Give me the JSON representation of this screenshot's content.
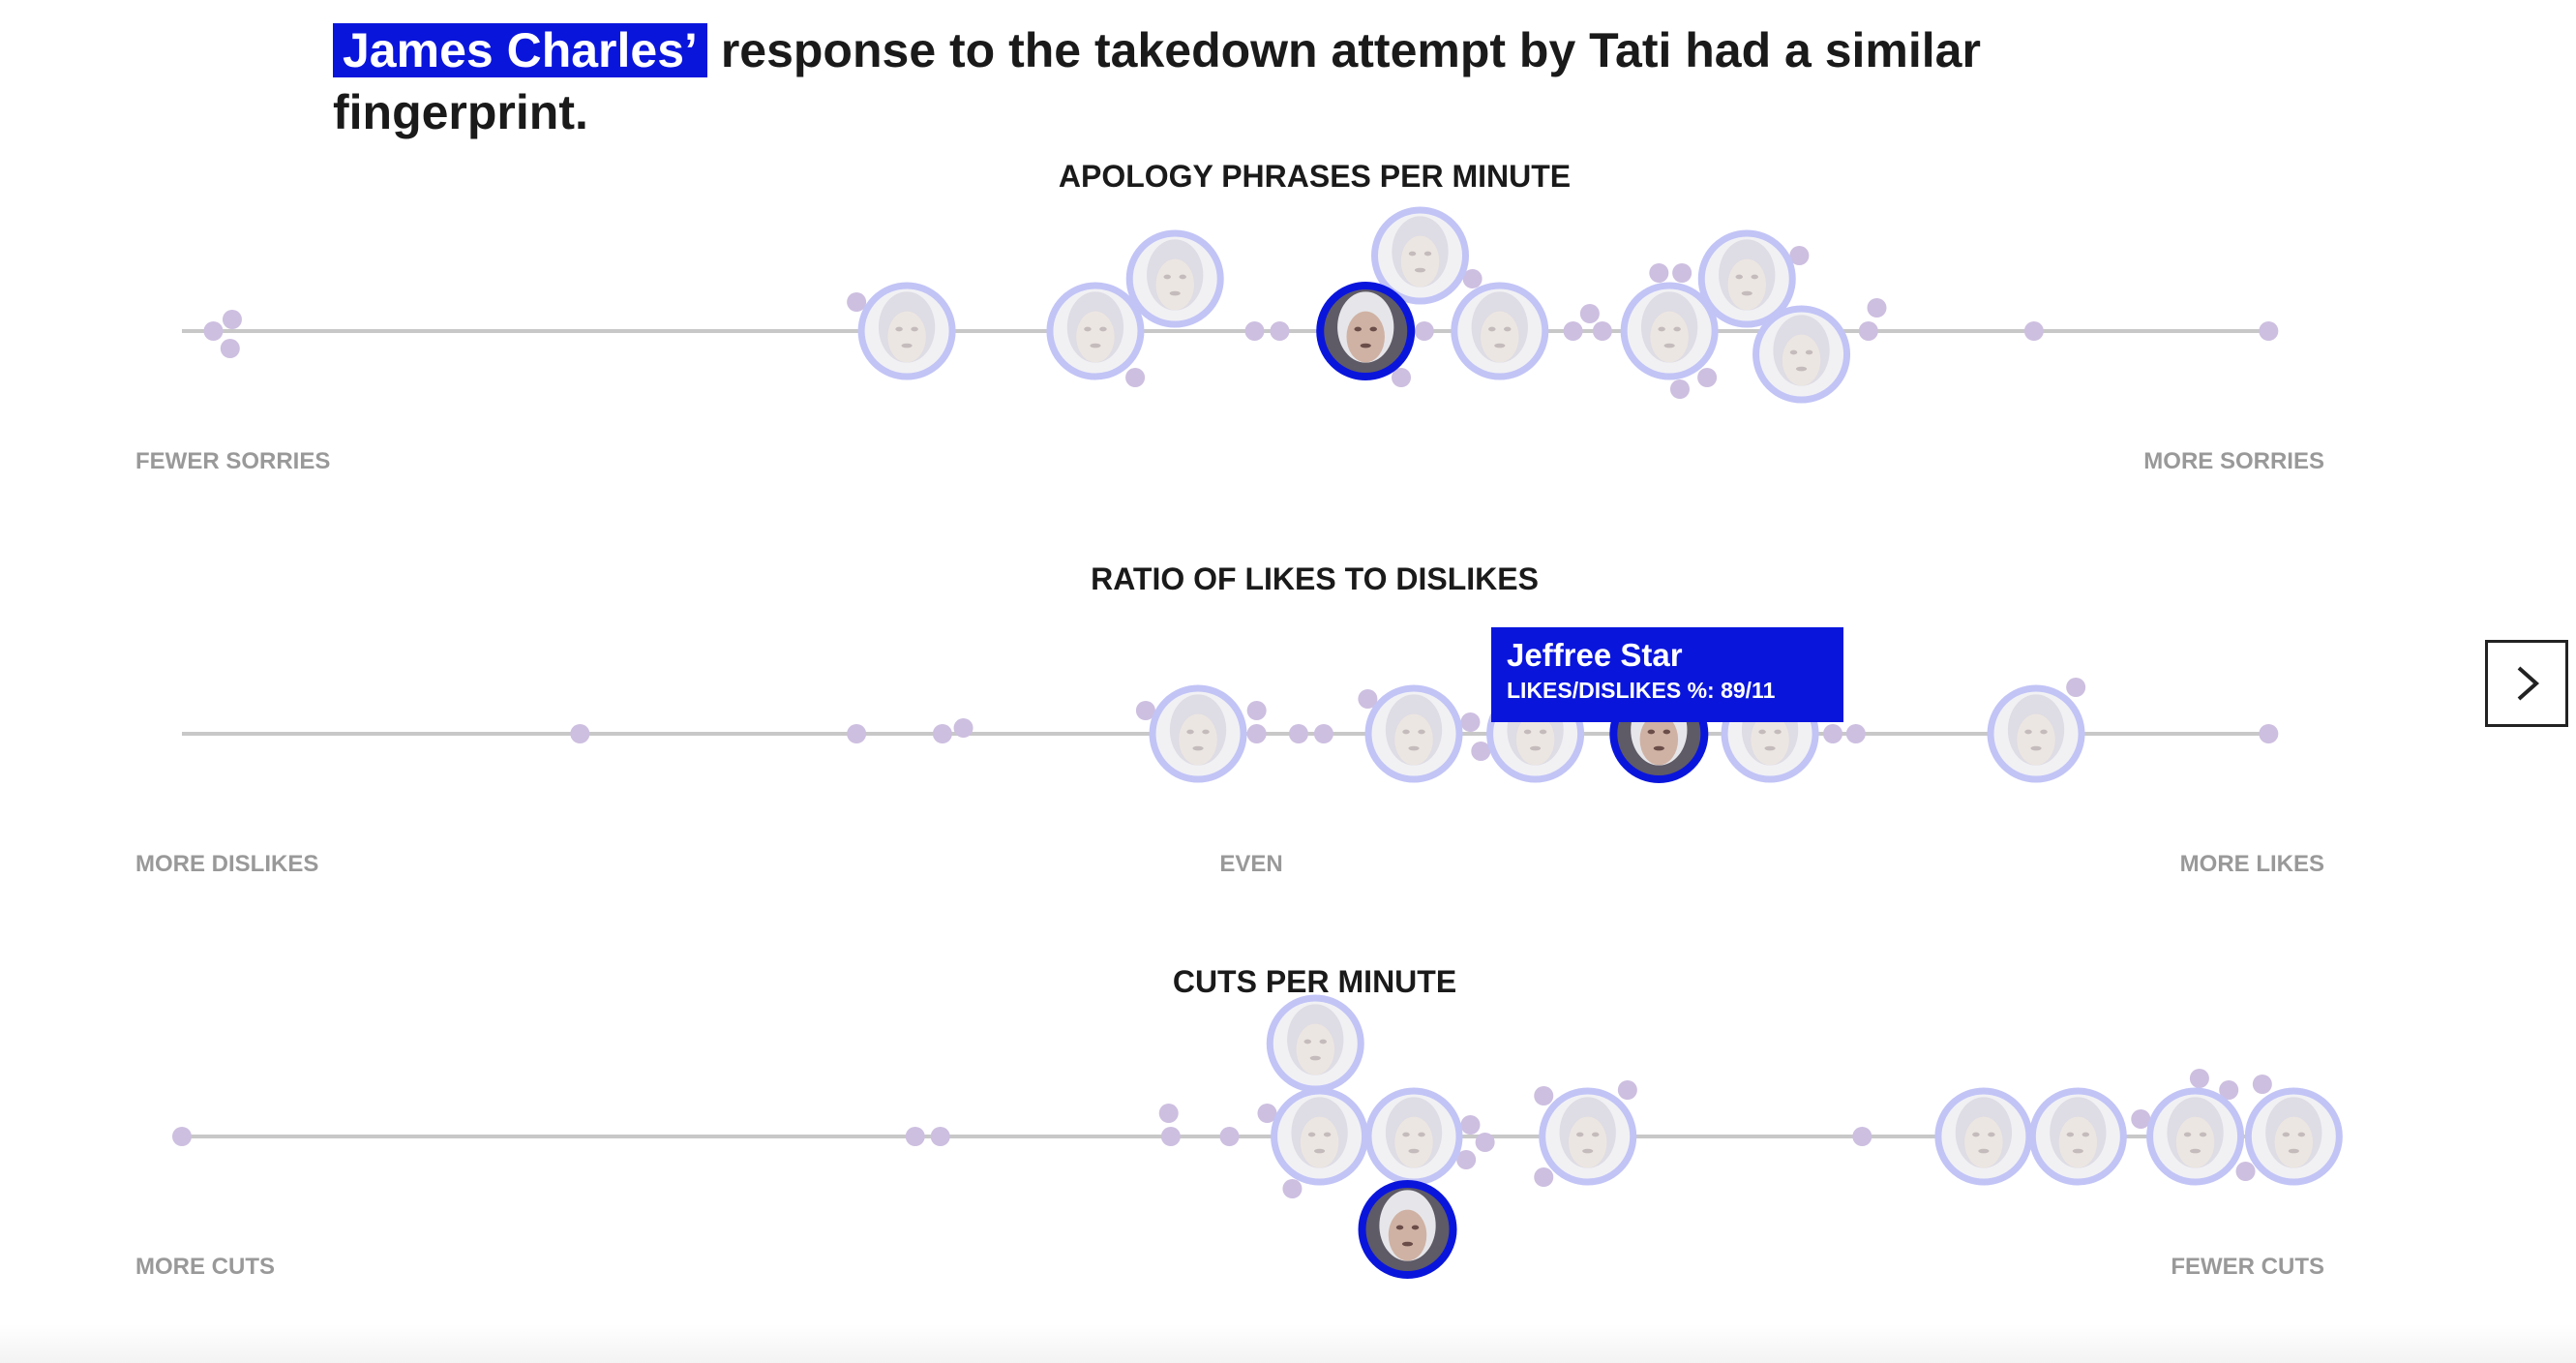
{
  "headline": {
    "highlight": "James Charles’",
    "rest": "response to the takedown attempt by Tati had a similar fingerprint."
  },
  "colors": {
    "accent": "#0a15dc",
    "dot": "#cdbfe0",
    "ring": "#c2c4f6",
    "track": "#c8c8c8",
    "muted": "#999999"
  },
  "tooltip": {
    "name": "Jeffree Star",
    "stat": "LIKES/DISLIKES %: 89/11"
  },
  "next_button": {
    "icon": "chevron-right-icon"
  },
  "chart_data": [
    {
      "type": "scatter",
      "title": "APOLOGY PHRASES PER MINUTE",
      "left_label": "FEWER SORRIES",
      "right_label": "MORE SORRIES",
      "xlim": [
        0,
        100
      ],
      "points": [
        {
          "x": 1.5,
          "kind": "dot"
        },
        {
          "x": 2.4,
          "kind": "dot"
        },
        {
          "x": 2.3,
          "kind": "dot"
        },
        {
          "x": 32.2,
          "kind": "dot"
        },
        {
          "x": 34.6,
          "kind": "face"
        },
        {
          "x": 43.6,
          "kind": "face"
        },
        {
          "x": 45.5,
          "kind": "dot"
        },
        {
          "x": 47.4,
          "kind": "face"
        },
        {
          "x": 51.2,
          "kind": "dot"
        },
        {
          "x": 52.4,
          "kind": "dot"
        },
        {
          "x": 56.5,
          "kind": "face",
          "active": true
        },
        {
          "x": 58.2,
          "kind": "dot"
        },
        {
          "x": 59.3,
          "kind": "dot"
        },
        {
          "x": 59.1,
          "kind": "face"
        },
        {
          "x": 61.6,
          "kind": "dot"
        },
        {
          "x": 62.9,
          "kind": "face"
        },
        {
          "x": 66.4,
          "kind": "dot"
        },
        {
          "x": 67.2,
          "kind": "dot"
        },
        {
          "x": 67.8,
          "kind": "dot"
        },
        {
          "x": 70.5,
          "kind": "dot"
        },
        {
          "x": 71.6,
          "kind": "dot"
        },
        {
          "x": 71.5,
          "kind": "dot"
        },
        {
          "x": 72.8,
          "kind": "dot"
        },
        {
          "x": 71.0,
          "kind": "face"
        },
        {
          "x": 74.7,
          "kind": "face"
        },
        {
          "x": 77.2,
          "kind": "dot"
        },
        {
          "x": 77.3,
          "kind": "face"
        },
        {
          "x": 80.5,
          "kind": "dot"
        },
        {
          "x": 80.9,
          "kind": "dot"
        },
        {
          "x": 88.4,
          "kind": "dot"
        },
        {
          "x": 99.6,
          "kind": "dot"
        }
      ]
    },
    {
      "type": "scatter",
      "title": "RATIO OF LIKES TO DISLIKES",
      "left_label": "MORE DISLIKES",
      "center_label": "EVEN",
      "right_label": "MORE LIKES",
      "xlim": [
        0,
        100
      ],
      "points": [
        {
          "x": 19.0,
          "kind": "dot"
        },
        {
          "x": 32.2,
          "kind": "dot"
        },
        {
          "x": 36.3,
          "kind": "dot"
        },
        {
          "x": 37.3,
          "kind": "dot"
        },
        {
          "x": 46.0,
          "kind": "dot"
        },
        {
          "x": 48.5,
          "kind": "face"
        },
        {
          "x": 51.3,
          "kind": "dot"
        },
        {
          "x": 51.3,
          "kind": "dot"
        },
        {
          "x": 53.3,
          "kind": "dot"
        },
        {
          "x": 54.5,
          "kind": "dot"
        },
        {
          "x": 56.6,
          "kind": "dot"
        },
        {
          "x": 58.8,
          "kind": "face"
        },
        {
          "x": 61.5,
          "kind": "dot"
        },
        {
          "x": 62.0,
          "kind": "dot"
        },
        {
          "x": 64.6,
          "kind": "face"
        },
        {
          "x": 66.6,
          "kind": "dot"
        },
        {
          "x": 70.5,
          "kind": "face",
          "active": true
        },
        {
          "x": 73.3,
          "kind": "dot"
        },
        {
          "x": 75.8,
          "kind": "face"
        },
        {
          "x": 78.8,
          "kind": "dot"
        },
        {
          "x": 79.9,
          "kind": "dot"
        },
        {
          "x": 88.5,
          "kind": "face"
        },
        {
          "x": 90.4,
          "kind": "dot"
        },
        {
          "x": 99.6,
          "kind": "dot"
        }
      ]
    },
    {
      "type": "scatter",
      "title": "CUTS PER MINUTE",
      "left_label": "MORE CUTS",
      "right_label": "FEWER CUTS",
      "xlim": [
        0,
        100
      ],
      "points": [
        {
          "x": 0.0,
          "kind": "dot"
        },
        {
          "x": 35.0,
          "kind": "dot"
        },
        {
          "x": 36.2,
          "kind": "dot"
        },
        {
          "x": 47.2,
          "kind": "dot"
        },
        {
          "x": 47.1,
          "kind": "dot"
        },
        {
          "x": 50.0,
          "kind": "dot"
        },
        {
          "x": 51.8,
          "kind": "dot"
        },
        {
          "x": 53.0,
          "kind": "dot"
        },
        {
          "x": 54.3,
          "kind": "face"
        },
        {
          "x": 58.8,
          "kind": "face"
        },
        {
          "x": 54.1,
          "kind": "face"
        },
        {
          "x": 58.5,
          "kind": "face",
          "active": true
        },
        {
          "x": 61.5,
          "kind": "dot"
        },
        {
          "x": 62.2,
          "kind": "dot"
        },
        {
          "x": 61.3,
          "kind": "dot"
        },
        {
          "x": 65.0,
          "kind": "dot"
        },
        {
          "x": 65.0,
          "kind": "dot"
        },
        {
          "x": 67.1,
          "kind": "face"
        },
        {
          "x": 69.0,
          "kind": "dot"
        },
        {
          "x": 80.2,
          "kind": "dot"
        },
        {
          "x": 86.0,
          "kind": "face"
        },
        {
          "x": 90.5,
          "kind": "face"
        },
        {
          "x": 93.5,
          "kind": "dot"
        },
        {
          "x": 96.1,
          "kind": "face"
        },
        {
          "x": 100.8,
          "kind": "face"
        },
        {
          "x": 96.3,
          "kind": "dot"
        },
        {
          "x": 97.7,
          "kind": "dot"
        },
        {
          "x": 98.5,
          "kind": "dot"
        },
        {
          "x": 99.3,
          "kind": "dot"
        }
      ]
    }
  ]
}
